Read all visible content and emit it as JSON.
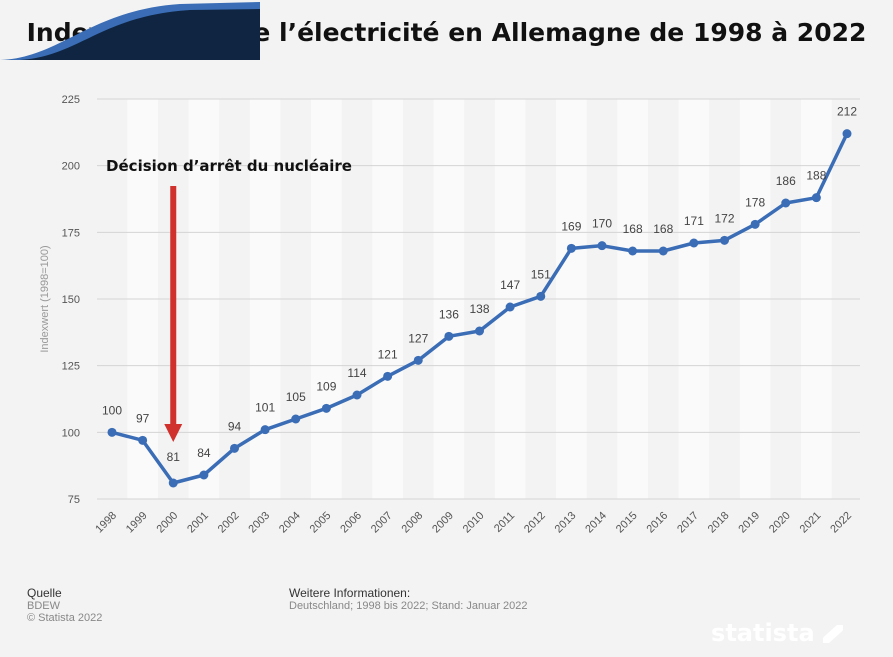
{
  "chart_data": {
    "type": "line",
    "title": "Index des prix de l’électricité en Allemagne de 1998 à 2022",
    "ylabel": "Indexwert (1998=100)",
    "xlabel": "",
    "ylim": [
      75,
      225
    ],
    "yticks": [
      75,
      100,
      125,
      150,
      175,
      200,
      225
    ],
    "grid": true,
    "x": [
      "1998",
      "1999",
      "2000",
      "2001",
      "2002",
      "2003",
      "2004",
      "2005",
      "2006",
      "2007",
      "2008",
      "2009",
      "2010",
      "2011",
      "2012",
      "2013",
      "2014",
      "2015",
      "2016",
      "2017",
      "2018",
      "2019",
      "2020",
      "2021",
      "2022"
    ],
    "values": [
      100,
      97,
      81,
      84,
      94,
      101,
      105,
      109,
      114,
      121,
      127,
      136,
      138,
      147,
      151,
      169,
      170,
      168,
      168,
      171,
      172,
      178,
      186,
      188,
      212
    ],
    "line_color": "#3a6db5",
    "annotation": {
      "text": "Décision d’arrêt du nucléaire",
      "target_year": "2000",
      "arrow_color": "#d0312d"
    }
  },
  "footer": {
    "source_label": "Quelle",
    "source": "BDEW",
    "copyright": "© Statista 2022",
    "info_label": "Weitere Informationen:",
    "info": "Deutschland; 1998 bis 2022; Stand: Januar 2022"
  },
  "logo": "statista"
}
